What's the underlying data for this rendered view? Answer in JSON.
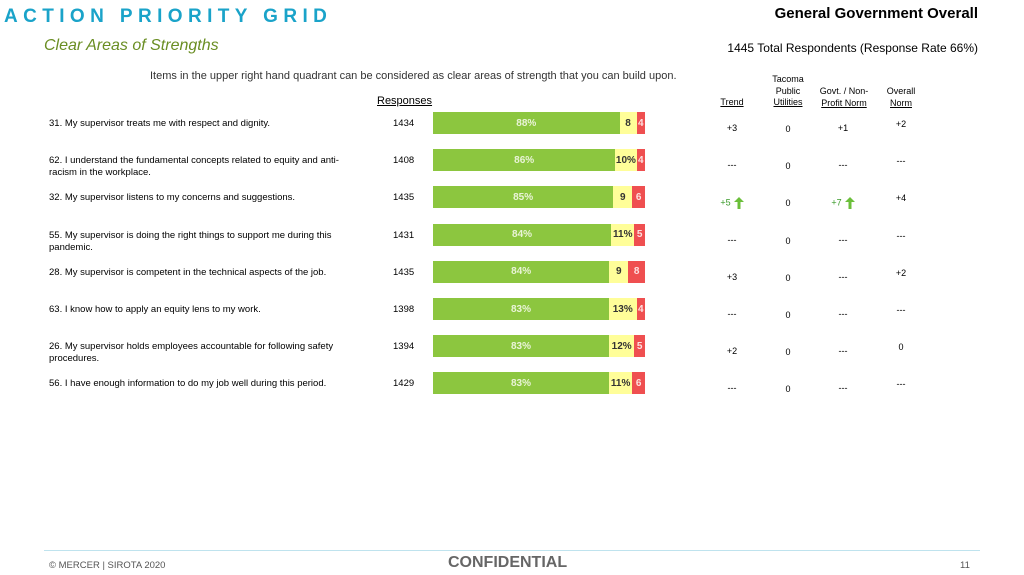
{
  "header": {
    "title": "ACTION PRIORITY GRID",
    "subtitle": "Clear Areas of Strengths",
    "org": "General Government Overall",
    "respondents": "1445 Total Respondents (Response Rate  66%)",
    "description": "Items in the upper right hand quadrant can be considered as clear areas of strength that you can build upon."
  },
  "columns": {
    "responses": "Responses",
    "trend": "Trend",
    "tacoma": [
      "Tacoma",
      "Public",
      "Utilities"
    ],
    "govt": [
      "Govt. / Non-",
      "Profit Norm"
    ],
    "overall": [
      "Overall",
      "Norm"
    ]
  },
  "colors": {
    "favorable": "#8cc63f",
    "neutral": "#fffe99",
    "unfavorable": "#ef4f50",
    "accent": "#1aa3c9"
  },
  "chart_data": {
    "type": "bar",
    "stacked": true,
    "orientation": "horizontal",
    "categories": [
      "31. My supervisor treats me with respect and dignity.",
      "62. I understand the fundamental concepts related to equity and anti-racism in the workplace.",
      "32. My supervisor listens to my concerns and suggestions.",
      "55. My supervisor is doing the right things to support me during this pandemic.",
      "28. My supervisor is competent in the technical aspects of the job.",
      "63. I know how to apply an equity lens to my work.",
      "26. My supervisor holds employees accountable for following safety procedures.",
      "56. I have enough information to do my job well during this period."
    ],
    "series": [
      {
        "values": [
          88,
          86,
          85,
          84,
          84,
          83,
          83,
          83
        ],
        "labels": [
          "88%",
          "86%",
          "85%",
          "84%",
          "84%",
          "83%",
          "83%",
          "83%"
        ]
      },
      {
        "values": [
          8,
          10,
          9,
          11,
          9,
          13,
          12,
          11
        ],
        "labels": [
          "8",
          "10%",
          "9",
          "11%",
          "9",
          "13%",
          "12%",
          "11%"
        ]
      },
      {
        "values": [
          4,
          4,
          6,
          5,
          8,
          4,
          5,
          6
        ],
        "labels": [
          "4",
          "4",
          "6",
          "5",
          "8",
          "4",
          "5",
          "6"
        ]
      }
    ],
    "xlim": [
      0,
      100
    ]
  },
  "rows": [
    {
      "statement": "31. My supervisor treats me with respect and dignity.",
      "responses": "1434",
      "trend": "+3",
      "trend_up": false,
      "tacoma": "0",
      "govt": "+1",
      "govt_up": false,
      "overall": "+2"
    },
    {
      "statement": "62. I understand the fundamental concepts related to equity and anti-racism in the workplace.",
      "responses": "1408",
      "trend": "---",
      "trend_up": false,
      "tacoma": "0",
      "govt": "---",
      "govt_up": false,
      "overall": "---"
    },
    {
      "statement": "32. My supervisor listens to my concerns and suggestions.",
      "responses": "1435",
      "trend": "+5",
      "trend_up": true,
      "tacoma": "0",
      "govt": "+7",
      "govt_up": true,
      "overall": "+4"
    },
    {
      "statement": "55. My supervisor is doing the right things to support me during this pandemic.",
      "responses": "1431",
      "trend": "---",
      "trend_up": false,
      "tacoma": "0",
      "govt": "---",
      "govt_up": false,
      "overall": "---"
    },
    {
      "statement": "28. My supervisor is competent in the technical aspects of the job.",
      "responses": "1435",
      "trend": "+3",
      "trend_up": false,
      "tacoma": "0",
      "govt": "---",
      "govt_up": false,
      "overall": "+2"
    },
    {
      "statement": "63. I know how to apply an equity lens to my work.",
      "responses": "1398",
      "trend": "---",
      "trend_up": false,
      "tacoma": "0",
      "govt": "---",
      "govt_up": false,
      "overall": "---"
    },
    {
      "statement": "26. My supervisor holds employees accountable for following safety procedures.",
      "responses": "1394",
      "trend": "+2",
      "trend_up": false,
      "tacoma": "0",
      "govt": "---",
      "govt_up": false,
      "overall": "0"
    },
    {
      "statement": "56. I have enough information to do my job well during this period.",
      "responses": "1429",
      "trend": "---",
      "trend_up": false,
      "tacoma": "0",
      "govt": "---",
      "govt_up": false,
      "overall": "---"
    }
  ],
  "footer": {
    "copyright": "© MERCER | SIROTA 2020",
    "confidential": "CONFIDENTIAL",
    "page": "11"
  }
}
